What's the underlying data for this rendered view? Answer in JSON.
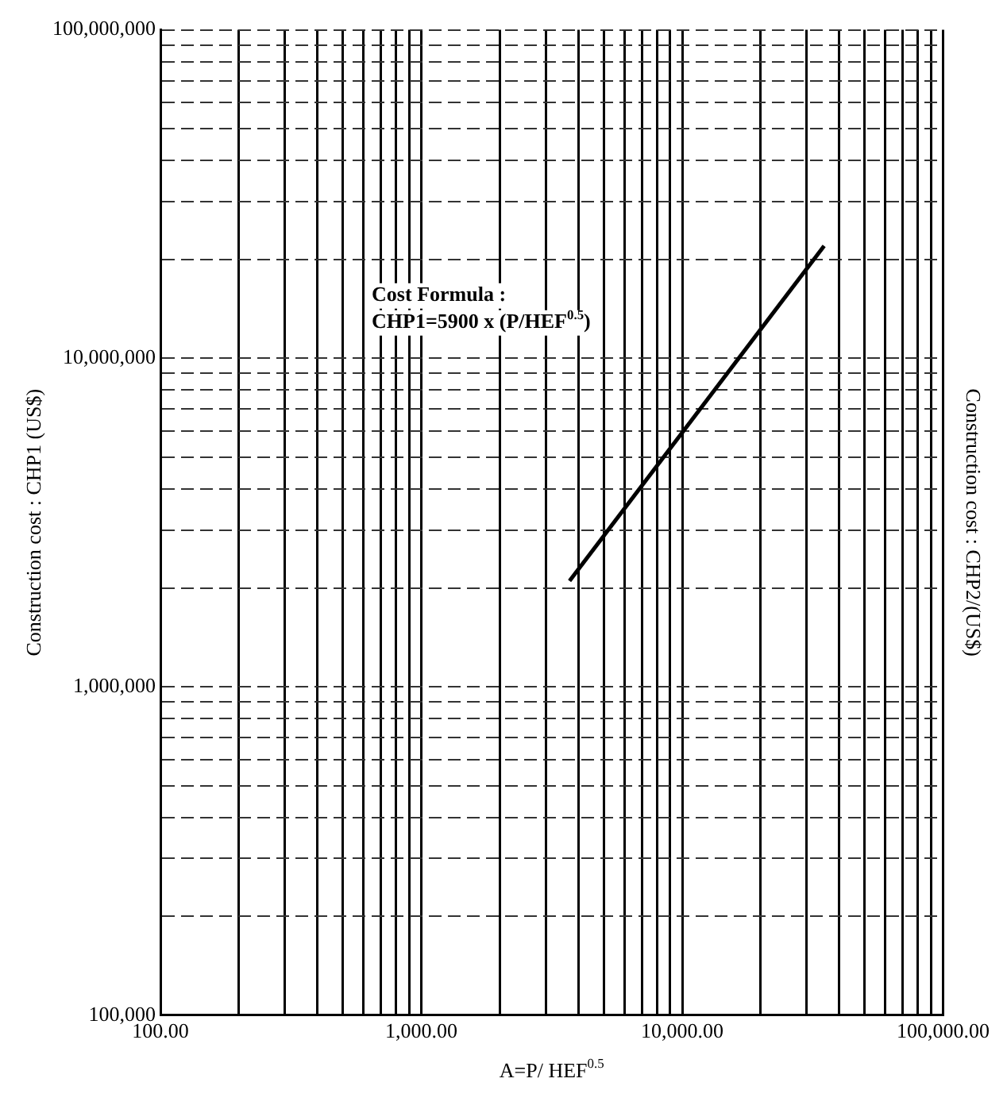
{
  "chart_data": {
    "type": "line",
    "xlabel": "A=P/ HEF$^{0.5}$",
    "ylabel": "Construction cost : CHP1 (US$)",
    "y2label": "Construction cost : CHP2/(US$)",
    "annotations": [
      "Cost Formula :",
      "CHP1=5900 x (P/HEF$^{0.5}$)"
    ],
    "x": [
      3700,
      35000
    ],
    "series": [
      {
        "color": "#000000",
        "values": [
          2100000,
          22000000
        ]
      }
    ],
    "log": "xy",
    "grid": true,
    "legend": false,
    "marker": "none",
    "line_style": "solid",
    "xlim": [
      100,
      100000
    ],
    "xticks": [
      {
        "value": 100,
        "label": "100.00"
      },
      {
        "value": 200,
        "label": null
      },
      {
        "value": 300,
        "label": null
      },
      {
        "value": 400,
        "label": null
      },
      {
        "value": 500,
        "label": null
      },
      {
        "value": 600,
        "label": null
      },
      {
        "value": 700,
        "label": null
      },
      {
        "value": 800,
        "label": null
      },
      {
        "value": 900,
        "label": null
      },
      {
        "value": 1000,
        "label": "1,000.00"
      },
      {
        "value": 2000,
        "label": null
      },
      {
        "value": 3000,
        "label": null
      },
      {
        "value": 4000,
        "label": null
      },
      {
        "value": 5000,
        "label": null
      },
      {
        "value": 6000,
        "label": null
      },
      {
        "value": 7000,
        "label": null
      },
      {
        "value": 8000,
        "label": null
      },
      {
        "value": 9000,
        "label": null
      },
      {
        "value": 10000,
        "label": "10,000.00"
      },
      {
        "value": 20000,
        "label": null
      },
      {
        "value": 30000,
        "label": null
      },
      {
        "value": 40000,
        "label": null
      },
      {
        "value": 50000,
        "label": null
      },
      {
        "value": 60000,
        "label": null
      },
      {
        "value": 70000,
        "label": null
      },
      {
        "value": 80000,
        "label": null
      },
      {
        "value": 90000,
        "label": null
      },
      {
        "value": 100000,
        "label": "100,000.00"
      }
    ],
    "ylim": [
      100000,
      100000000
    ],
    "yticks": [
      {
        "value": 100000,
        "label": "100,000"
      },
      {
        "value": 200000,
        "label": null
      },
      {
        "value": 300000,
        "label": null
      },
      {
        "value": 400000,
        "label": null
      },
      {
        "value": 500000,
        "label": null
      },
      {
        "value": 600000,
        "label": null
      },
      {
        "value": 700000,
        "label": null
      },
      {
        "value": 800000,
        "label": null
      },
      {
        "value": 900000,
        "label": null
      },
      {
        "value": 1000000,
        "label": "1,000,000"
      },
      {
        "value": 2000000,
        "label": null
      },
      {
        "value": 3000000,
        "label": null
      },
      {
        "value": 4000000,
        "label": null
      },
      {
        "value": 5000000,
        "label": null
      },
      {
        "value": 6000000,
        "label": null
      },
      {
        "value": 7000000,
        "label": null
      },
      {
        "value": 8000000,
        "label": null
      },
      {
        "value": 9000000,
        "label": null
      },
      {
        "value": 10000000,
        "label": "10,000,000"
      },
      {
        "value": 20000000,
        "label": null
      },
      {
        "value": 30000000,
        "label": null
      },
      {
        "value": 40000000,
        "label": null
      },
      {
        "value": 50000000,
        "label": null
      },
      {
        "value": 60000000,
        "label": null
      },
      {
        "value": 70000000,
        "label": null
      },
      {
        "value": 80000000,
        "label": null
      },
      {
        "value": 90000000,
        "label": null
      },
      {
        "value": 100000000,
        "label": "100,000,000"
      }
    ]
  }
}
